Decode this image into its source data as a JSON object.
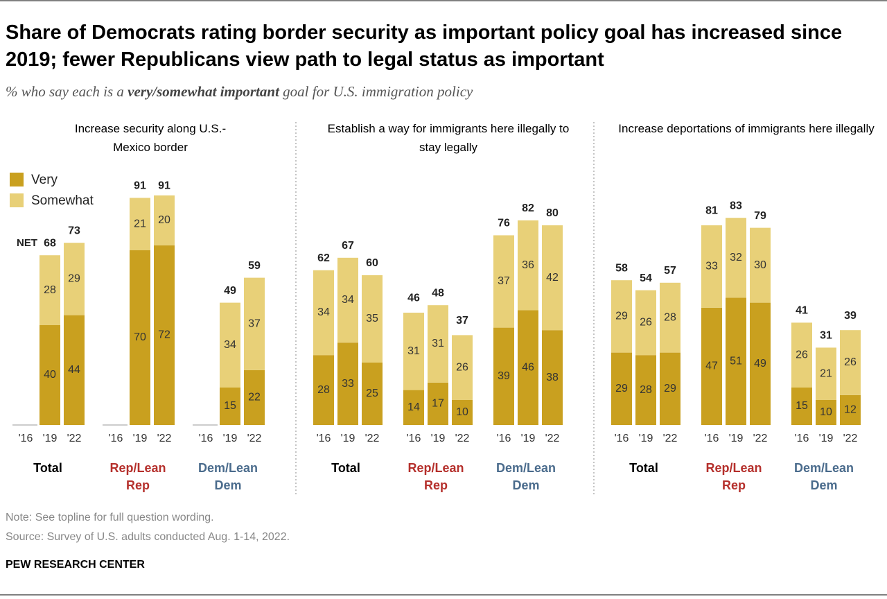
{
  "title": "Share of Democrats rating border security as important policy goal has increased since 2019; fewer Republicans view path to legal status as important",
  "subtitle_parts": [
    "% who say each is a ",
    "very/somewhat important",
    " goal for U.S. immigration policy"
  ],
  "chart_data": {
    "type": "bar",
    "stacked": true,
    "series": [
      {
        "name": "Very",
        "color": "#c9a01f"
      },
      {
        "name": "Somewhat",
        "color": "#e8d078"
      }
    ],
    "categories": [
      "'16",
      "'19",
      "'22"
    ],
    "groups": [
      {
        "name": "Total",
        "color": "#000000"
      },
      {
        "name": "Rep/Lean Rep",
        "color": "#b5302c"
      },
      {
        "name": "Dem/Lean Dem",
        "color": "#4a6b8c"
      }
    ],
    "net_label": "NET",
    "panels": [
      {
        "title": "Increase security along U.S.-Mexico border",
        "values": [
          [
            null,
            40,
            44,
            null,
            70,
            72,
            null,
            15,
            22
          ],
          [
            null,
            28,
            29,
            null,
            21,
            20,
            null,
            34,
            37
          ]
        ],
        "net": [
          null,
          68,
          73,
          null,
          91,
          91,
          null,
          49,
          59
        ]
      },
      {
        "title": "Establish a way for immigrants here illegally to stay legally",
        "values": [
          [
            28,
            33,
            25,
            14,
            17,
            10,
            39,
            46,
            38
          ],
          [
            34,
            34,
            35,
            31,
            31,
            26,
            37,
            36,
            42
          ]
        ],
        "net": [
          62,
          67,
          60,
          46,
          48,
          37,
          76,
          82,
          80
        ]
      },
      {
        "title": "Increase deportations of immigrants here illegally",
        "values": [
          [
            29,
            28,
            29,
            47,
            51,
            49,
            15,
            10,
            12
          ],
          [
            29,
            26,
            28,
            33,
            32,
            30,
            26,
            21,
            26
          ]
        ],
        "net": [
          58,
          54,
          57,
          81,
          83,
          79,
          41,
          31,
          39
        ]
      }
    ]
  },
  "note": "Note: See topline for full question wording.",
  "source": "Source: Survey of U.S. adults conducted Aug. 1-14, 2022.",
  "footer": "PEW RESEARCH CENTER"
}
